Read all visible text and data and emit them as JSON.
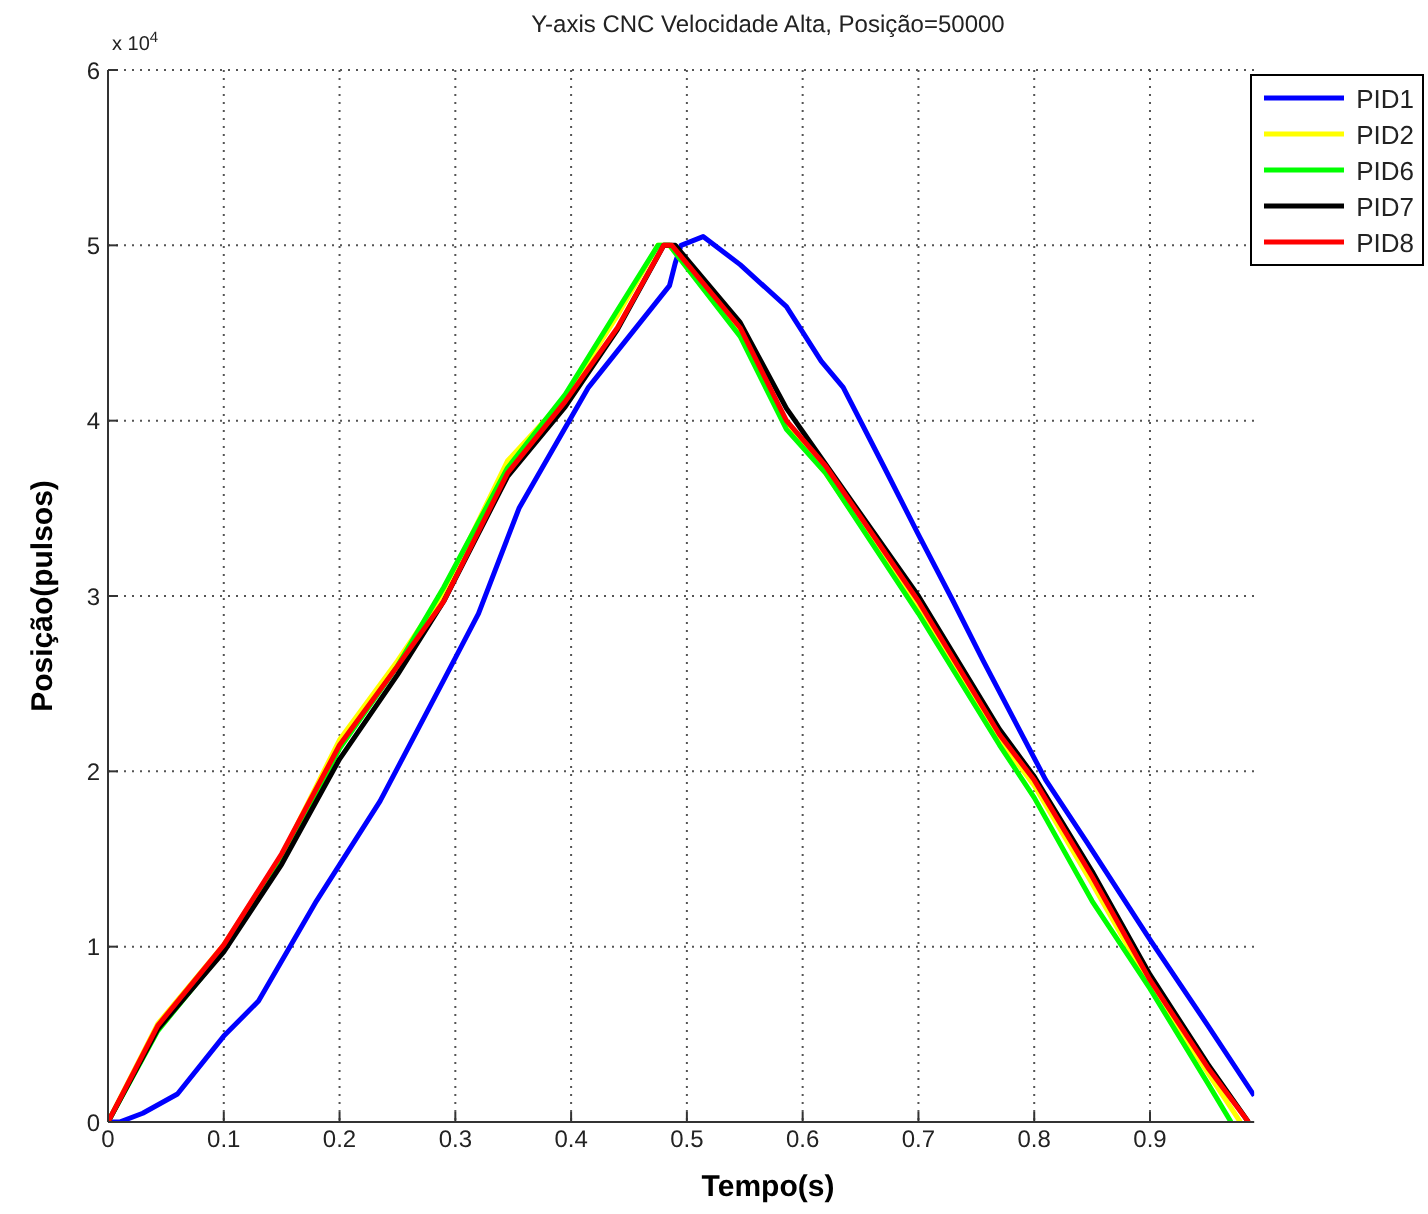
{
  "chart_data": {
    "type": "line",
    "title": "Y-axis CNC Velocidade Alta, Posição=50000",
    "xlabel": "Tempo(s)",
    "ylabel": "Posição(pulsos)",
    "annotations": [
      "x 10$^{4}$"
    ],
    "xlim": [
      0,
      0.99
    ],
    "xticks": [
      0,
      0.1,
      0.2,
      0.3,
      0.4,
      0.5,
      0.6,
      0.7,
      0.8,
      0.9
    ],
    "ylim": [
      0,
      6
    ],
    "yticks": [
      0,
      1,
      2,
      3,
      4,
      5,
      6
    ],
    "grid": true,
    "legend": "top right",
    "line_style": "solid",
    "marker": "none",
    "series": [
      {
        "name": "PID1",
        "color": "#0000ff",
        "x": [
          0,
          0.01,
          0.03,
          0.06,
          0.1,
          0.13,
          0.18,
          0.235,
          0.29,
          0.32,
          0.355,
          0.415,
          0.485,
          0.49,
          0.495,
          0.514,
          0.546,
          0.586,
          0.616,
          0.635,
          0.67,
          0.7,
          0.73,
          0.756,
          0.81,
          0.845,
          0.9,
          0.95,
          0.99
        ],
        "values": [
          0,
          0,
          0.05,
          0.16,
          0.49,
          0.69,
          1.26,
          1.83,
          2.52,
          2.9,
          3.5,
          4.19,
          4.77,
          4.9,
          5.0,
          5.05,
          4.89,
          4.65,
          4.34,
          4.19,
          3.74,
          3.35,
          2.97,
          2.63,
          1.95,
          1.6,
          1.04,
          0.55,
          0.15
        ]
      },
      {
        "name": "PID2",
        "color": "#ffff00",
        "x": [
          0,
          0.043,
          0.1,
          0.15,
          0.2,
          0.25,
          0.29,
          0.345,
          0.395,
          0.44,
          0.475,
          0.485,
          0.546,
          0.586,
          0.62,
          0.7,
          0.77,
          0.8,
          0.85,
          0.9,
          0.95,
          0.978
        ],
        "values": [
          0,
          0.56,
          1.01,
          1.52,
          2.18,
          2.63,
          3.02,
          3.77,
          4.13,
          4.6,
          5.0,
          5.0,
          4.49,
          3.97,
          3.7,
          2.92,
          2.18,
          1.92,
          1.36,
          0.78,
          0.28,
          0
        ]
      },
      {
        "name": "PID6",
        "color": "#00ff00",
        "x": [
          0,
          0.043,
          0.1,
          0.15,
          0.2,
          0.25,
          0.29,
          0.345,
          0.395,
          0.44,
          0.475,
          0.485,
          0.546,
          0.586,
          0.62,
          0.7,
          0.77,
          0.8,
          0.85,
          0.9,
          0.95,
          0.97
        ],
        "values": [
          0,
          0.52,
          0.98,
          1.5,
          2.13,
          2.6,
          3.05,
          3.73,
          4.15,
          4.63,
          5.0,
          5.0,
          4.48,
          3.95,
          3.7,
          2.9,
          2.15,
          1.85,
          1.26,
          0.76,
          0.22,
          0
        ]
      },
      {
        "name": "PID7",
        "color": "#000000",
        "x": [
          0,
          0.043,
          0.1,
          0.15,
          0.2,
          0.25,
          0.29,
          0.345,
          0.395,
          0.44,
          0.48,
          0.49,
          0.546,
          0.586,
          0.62,
          0.7,
          0.77,
          0.8,
          0.85,
          0.9,
          0.95,
          0.985
        ],
        "values": [
          0,
          0.53,
          0.97,
          1.47,
          2.07,
          2.55,
          2.97,
          3.68,
          4.08,
          4.52,
          5.0,
          5.0,
          4.56,
          4.07,
          3.75,
          3.0,
          2.24,
          1.97,
          1.43,
          0.84,
          0.33,
          0
        ]
      },
      {
        "name": "PID8",
        "color": "#ff0000",
        "x": [
          0,
          0.043,
          0.1,
          0.15,
          0.2,
          0.25,
          0.29,
          0.345,
          0.395,
          0.44,
          0.48,
          0.487,
          0.546,
          0.586,
          0.62,
          0.7,
          0.77,
          0.8,
          0.85,
          0.9,
          0.95,
          0.985
        ],
        "values": [
          0,
          0.55,
          1.01,
          1.53,
          2.15,
          2.6,
          2.97,
          3.7,
          4.11,
          4.53,
          5.0,
          5.0,
          4.53,
          4.0,
          3.74,
          2.97,
          2.21,
          1.95,
          1.4,
          0.81,
          0.31,
          0
        ]
      }
    ]
  }
}
